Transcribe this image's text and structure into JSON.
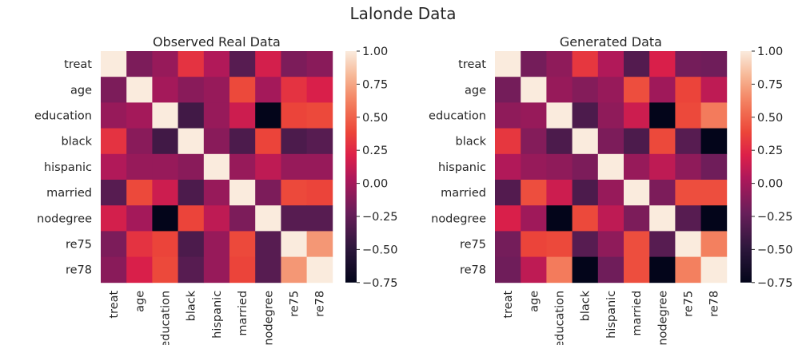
{
  "figure": {
    "title": "Lalonde Data"
  },
  "chart_data": [
    {
      "type": "heatmap",
      "title": "Observed Real Data",
      "variables": [
        "treat",
        "age",
        "education",
        "black",
        "hispanic",
        "married",
        "nodegree",
        "re75",
        "re78"
      ],
      "colorbar": {
        "min": -0.75,
        "max": 1.0,
        "ticks": [
          1.0,
          0.75,
          0.5,
          0.25,
          0.0,
          -0.25,
          -0.5,
          -0.75
        ]
      },
      "matrix": [
        [
          1.0,
          -0.15,
          -0.05,
          0.3,
          0.05,
          -0.3,
          0.18,
          -0.15,
          -0.1
        ],
        [
          -0.15,
          1.0,
          0.0,
          -0.1,
          -0.05,
          0.4,
          0.0,
          0.3,
          0.2
        ],
        [
          -0.05,
          0.0,
          1.0,
          -0.4,
          -0.05,
          0.15,
          -0.75,
          0.38,
          0.4
        ],
        [
          0.3,
          -0.1,
          -0.4,
          1.0,
          -0.1,
          -0.35,
          0.38,
          -0.35,
          -0.3
        ],
        [
          0.05,
          -0.05,
          -0.05,
          -0.1,
          1.0,
          -0.05,
          0.1,
          -0.05,
          -0.05
        ],
        [
          -0.3,
          0.4,
          0.15,
          -0.35,
          -0.05,
          1.0,
          -0.15,
          0.4,
          0.38
        ],
        [
          0.18,
          0.0,
          -0.75,
          0.38,
          0.1,
          -0.15,
          1.0,
          -0.3,
          -0.3
        ],
        [
          -0.15,
          0.3,
          0.38,
          -0.35,
          -0.05,
          0.4,
          -0.3,
          1.0,
          0.7
        ],
        [
          -0.1,
          0.2,
          0.4,
          -0.3,
          -0.05,
          0.38,
          -0.3,
          0.7,
          1.0
        ]
      ]
    },
    {
      "type": "heatmap",
      "title": "Generated Data",
      "variables": [
        "treat",
        "age",
        "education",
        "black",
        "hispanic",
        "married",
        "nodegree",
        "re75",
        "re78"
      ],
      "colorbar": {
        "min": -0.75,
        "max": 1.0,
        "ticks": [
          1.0,
          0.75,
          0.5,
          0.25,
          0.0,
          -0.25,
          -0.5,
          -0.75
        ]
      },
      "matrix": [
        [
          1.0,
          -0.18,
          -0.08,
          0.32,
          0.05,
          -0.32,
          0.2,
          -0.18,
          -0.2
        ],
        [
          -0.18,
          1.0,
          -0.05,
          -0.12,
          -0.05,
          0.42,
          -0.02,
          0.38,
          0.1
        ],
        [
          -0.08,
          -0.05,
          1.0,
          -0.35,
          -0.08,
          0.15,
          -0.75,
          0.4,
          0.6
        ],
        [
          0.32,
          -0.12,
          -0.35,
          1.0,
          -0.15,
          -0.35,
          0.4,
          -0.3,
          -0.75
        ],
        [
          0.05,
          -0.05,
          -0.08,
          -0.15,
          1.0,
          -0.05,
          0.1,
          -0.08,
          -0.2
        ],
        [
          -0.32,
          0.42,
          0.15,
          -0.35,
          -0.05,
          1.0,
          -0.15,
          0.42,
          0.42
        ],
        [
          0.2,
          -0.02,
          -0.75,
          0.4,
          0.1,
          -0.15,
          1.0,
          -0.3,
          -0.75
        ],
        [
          -0.18,
          0.38,
          0.4,
          -0.3,
          -0.08,
          0.42,
          -0.3,
          1.0,
          0.62
        ],
        [
          -0.2,
          0.1,
          0.6,
          -0.75,
          -0.2,
          0.42,
          -0.75,
          0.62,
          1.0
        ]
      ]
    }
  ]
}
